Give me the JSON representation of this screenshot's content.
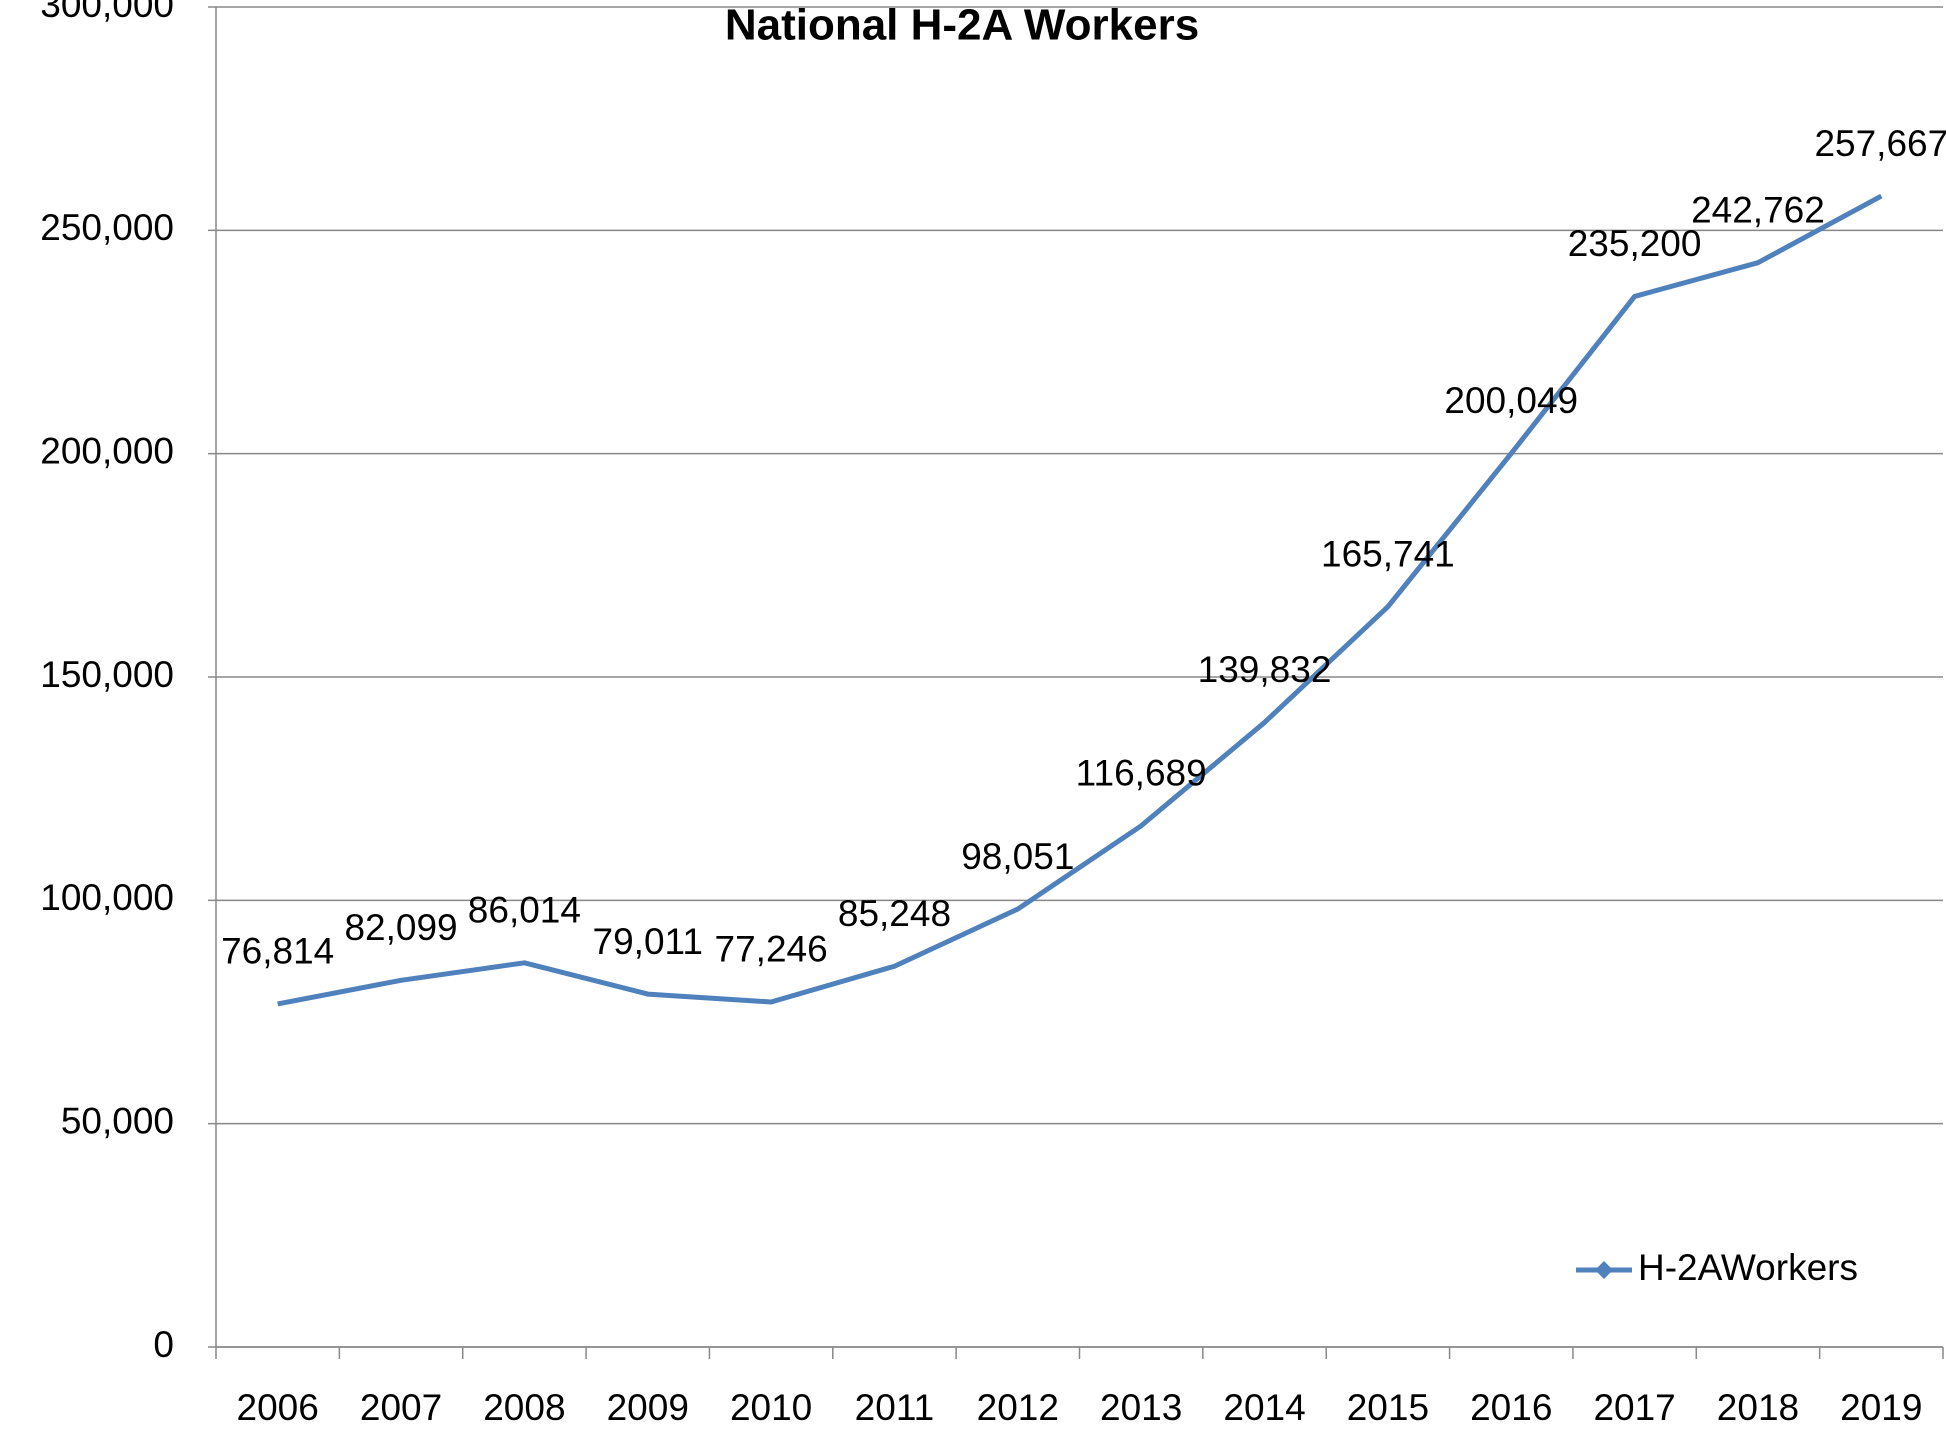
{
  "chart_data": {
    "type": "line",
    "title": "National H-2A Workers",
    "categories": [
      "2006",
      "2007",
      "2008",
      "2009",
      "2010",
      "2011",
      "2012",
      "2013",
      "2014",
      "2015",
      "2016",
      "2017",
      "2018",
      "2019"
    ],
    "series": [
      {
        "name": "H-2AWorkers",
        "color": "#4f81bd",
        "values": [
          76814,
          82099,
          86014,
          79011,
          77246,
          85248,
          98051,
          116689,
          139832,
          165741,
          200049,
          235200,
          242762,
          257667
        ],
        "value_labels": [
          "76,814",
          "82,099",
          "86,014",
          "79,011",
          "77,246",
          "85,248",
          "98,051",
          "116,689",
          "139,832",
          "165,741",
          "200,049",
          "235,200",
          "242,762",
          "257,667"
        ]
      }
    ],
    "ylim": [
      0,
      300000
    ],
    "yticks": [
      0,
      {
        "value": 50000,
        "label": "50,000"
      },
      {
        "value": 100000,
        "label": "100,000"
      },
      {
        "value": 150000,
        "label": "150,000"
      },
      {
        "value": 200000,
        "label": "200,000"
      },
      {
        "value": 250000,
        "label": "250,000"
      },
      {
        "value": 300000,
        "label": "300,000"
      }
    ],
    "grid": true,
    "legend": "lower right"
  }
}
